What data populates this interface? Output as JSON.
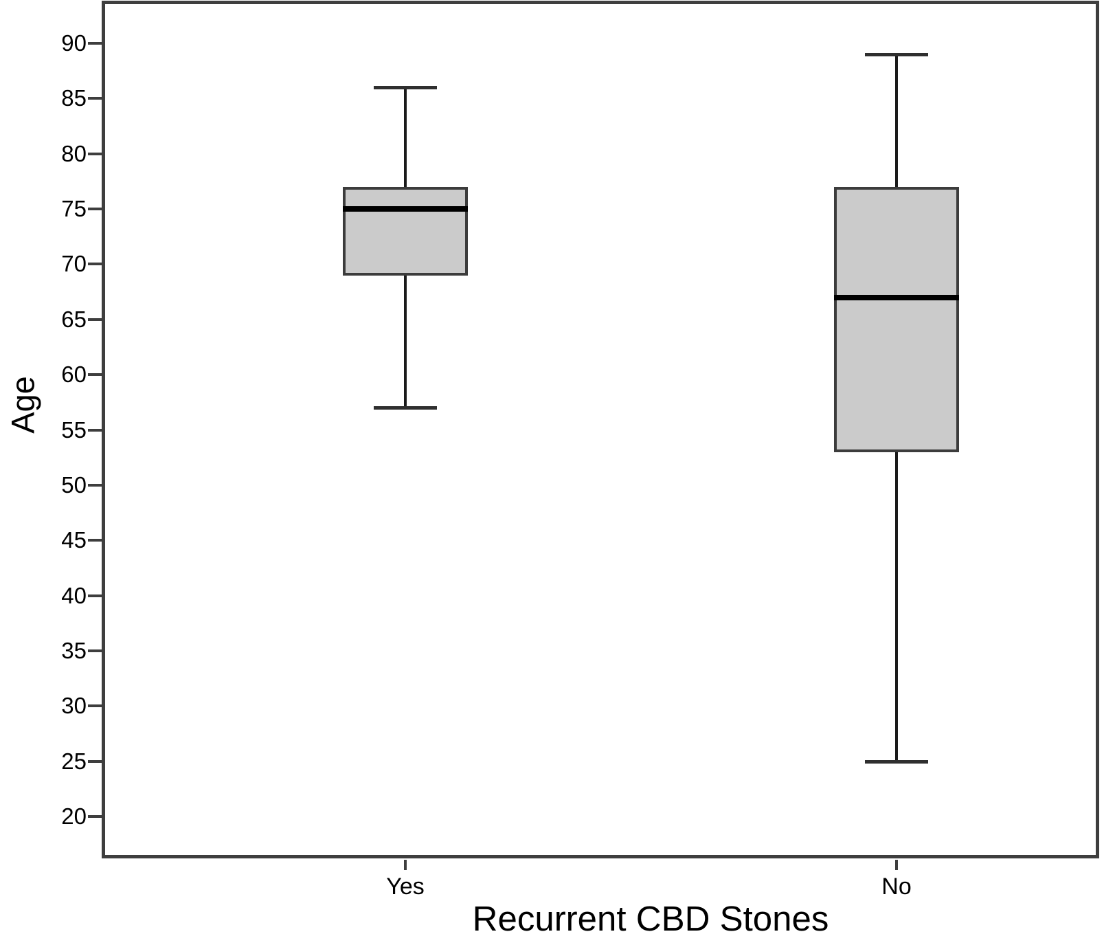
{
  "chart_data": {
    "type": "boxplot",
    "title": "",
    "xlabel": "Recurrent CBD Stones",
    "ylabel": "Age",
    "categories": [
      "Yes",
      "No"
    ],
    "series": [
      {
        "name": "Yes",
        "whisker_low": 57,
        "q1": 69,
        "median": 75,
        "q3": 77,
        "whisker_high": 86
      },
      {
        "name": "No",
        "whisker_low": 25,
        "q1": 53,
        "median": 67,
        "q3": 77,
        "whisker_high": 89
      }
    ],
    "yticks": [
      20,
      25,
      30,
      35,
      40,
      45,
      50,
      55,
      60,
      65,
      70,
      75,
      80,
      85,
      90
    ],
    "y_axis_range_shown": [
      20,
      90
    ],
    "grid": false,
    "legend": null,
    "outliers": [],
    "colors": {
      "background": "#ffffff",
      "box_fill": "#cbcbcb",
      "box_border": "#3c3c3c",
      "median": "#000000",
      "whisker": "#1a1a1a",
      "axis_frame": "#3e3e3e",
      "text": "#000000"
    }
  }
}
